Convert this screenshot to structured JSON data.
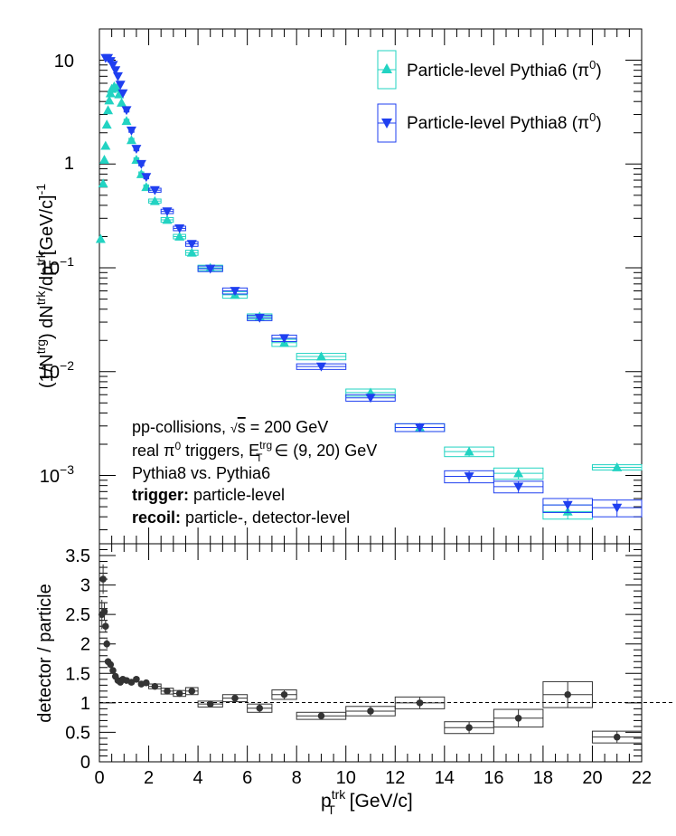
{
  "chart_data": [
    {
      "type": "scatter",
      "panel": "top",
      "log_y": true,
      "xlim": [
        0,
        22
      ],
      "ylim": [
        0.00022,
        20
      ],
      "ylabel": "(1/N^trg) dN^trk/dp_T^trk [GeV/c]^-1",
      "y_tick_labels": [
        "10^-3",
        "10^-2",
        "10^-1",
        "1",
        "10"
      ],
      "legend_position": "top-right",
      "annotations": [
        "pp-collisions, √s = 200 GeV",
        "real π⁰ triggers, E_T^trg ∈ (9, 20) GeV",
        "Pythia8 vs. Pythia6",
        "trigger: particle-level",
        "recoil: particle-, detector-level"
      ],
      "series": [
        {
          "name": "Particle-level Pythia6 (π⁰)",
          "color": "#22d3c2",
          "marker": "triangle-up",
          "points": [
            {
              "x": 0.05,
              "y": 0.19,
              "xw": 0.05,
              "e": 0.01
            },
            {
              "x": 0.15,
              "y": 0.65,
              "xw": 0.05,
              "e": 0.03
            },
            {
              "x": 0.2,
              "y": 1.1,
              "xw": 0.03,
              "e": 0.05
            },
            {
              "x": 0.25,
              "y": 1.5,
              "xw": 0.03,
              "e": 0.06
            },
            {
              "x": 0.3,
              "y": 2.4,
              "xw": 0.03,
              "e": 0.1
            },
            {
              "x": 0.35,
              "y": 3.3,
              "xw": 0.03,
              "e": 0.13
            },
            {
              "x": 0.4,
              "y": 4.1,
              "xw": 0.03,
              "e": 0.16
            },
            {
              "x": 0.45,
              "y": 4.8,
              "xw": 0.03,
              "e": 0.19
            },
            {
              "x": 0.5,
              "y": 5.3,
              "xw": 0.03,
              "e": 0.2
            },
            {
              "x": 0.6,
              "y": 5.6,
              "xw": 0.05,
              "e": 0.22
            },
            {
              "x": 0.7,
              "y": 5.4,
              "xw": 0.05,
              "e": 0.2
            },
            {
              "x": 0.8,
              "y": 4.7,
              "xw": 0.05,
              "e": 0.18
            },
            {
              "x": 0.9,
              "y": 3.9,
              "xw": 0.05,
              "e": 0.15
            },
            {
              "x": 1.1,
              "y": 2.6,
              "xw": 0.1,
              "e": 0.1
            },
            {
              "x": 1.3,
              "y": 1.7,
              "xw": 0.1,
              "e": 0.07
            },
            {
              "x": 1.5,
              "y": 1.1,
              "xw": 0.1,
              "e": 0.05
            },
            {
              "x": 1.7,
              "y": 0.8,
              "xw": 0.1,
              "e": 0.04
            },
            {
              "x": 1.9,
              "y": 0.6,
              "xw": 0.1,
              "e": 0.03
            },
            {
              "x": 2.25,
              "y": 0.44,
              "xw": 0.25,
              "e": 0.02
            },
            {
              "x": 2.75,
              "y": 0.29,
              "xw": 0.25,
              "e": 0.015
            },
            {
              "x": 3.25,
              "y": 0.2,
              "xw": 0.25,
              "e": 0.01
            },
            {
              "x": 3.75,
              "y": 0.14,
              "xw": 0.25,
              "e": 0.008
            },
            {
              "x": 4.5,
              "y": 0.1,
              "xw": 0.5,
              "e": 0.006
            },
            {
              "x": 5.5,
              "y": 0.055,
              "xw": 0.5,
              "e": 0.004
            },
            {
              "x": 6.5,
              "y": 0.034,
              "xw": 0.5,
              "e": 0.002
            },
            {
              "x": 7.5,
              "y": 0.019,
              "xw": 0.5,
              "e": 0.0015
            },
            {
              "x": 9.0,
              "y": 0.014,
              "xw": 1.0,
              "e": 0.001
            },
            {
              "x": 11.0,
              "y": 0.0063,
              "xw": 1.0,
              "e": 0.0005
            },
            {
              "x": 13.0,
              "y": 0.0029,
              "xw": 1.0,
              "e": 0.00025
            },
            {
              "x": 15.0,
              "y": 0.0017,
              "xw": 1.0,
              "e": 0.00018
            },
            {
              "x": 17.0,
              "y": 0.00105,
              "xw": 1.0,
              "e": 0.00013
            },
            {
              "x": 19.0,
              "y": 0.00045,
              "xw": 1.0,
              "e": 7e-05
            },
            {
              "x": 21.0,
              "y": 0.0012,
              "xw": 1.0,
              "e": 7e-05
            }
          ]
        },
        {
          "name": "Particle-level Pythia8 (π⁰)",
          "color": "#1f3ff0",
          "marker": "triangle-down",
          "points": [
            {
              "x": 0.25,
              "y": 10.5,
              "xw": 0.03,
              "e": 0.3
            },
            {
              "x": 0.35,
              "y": 10.5,
              "xw": 0.03,
              "e": 0.3
            },
            {
              "x": 0.45,
              "y": 9.8,
              "xw": 0.03,
              "e": 0.3
            },
            {
              "x": 0.55,
              "y": 9.0,
              "xw": 0.03,
              "e": 0.3
            },
            {
              "x": 0.65,
              "y": 8.0,
              "xw": 0.05,
              "e": 0.3
            },
            {
              "x": 0.75,
              "y": 7.0,
              "xw": 0.05,
              "e": 0.25
            },
            {
              "x": 0.85,
              "y": 5.8,
              "xw": 0.05,
              "e": 0.2
            },
            {
              "x": 0.95,
              "y": 4.8,
              "xw": 0.05,
              "e": 0.18
            },
            {
              "x": 1.1,
              "y": 3.3,
              "xw": 0.1,
              "e": 0.13
            },
            {
              "x": 1.3,
              "y": 2.1,
              "xw": 0.1,
              "e": 0.08
            },
            {
              "x": 1.5,
              "y": 1.4,
              "xw": 0.1,
              "e": 0.06
            },
            {
              "x": 1.7,
              "y": 1.0,
              "xw": 0.1,
              "e": 0.04
            },
            {
              "x": 1.9,
              "y": 0.75,
              "xw": 0.1,
              "e": 0.03
            },
            {
              "x": 2.25,
              "y": 0.56,
              "xw": 0.25,
              "e": 0.025
            },
            {
              "x": 2.75,
              "y": 0.35,
              "xw": 0.25,
              "e": 0.017
            },
            {
              "x": 3.25,
              "y": 0.24,
              "xw": 0.25,
              "e": 0.012
            },
            {
              "x": 3.75,
              "y": 0.17,
              "xw": 0.25,
              "e": 0.009
            },
            {
              "x": 4.5,
              "y": 0.098,
              "xw": 0.5,
              "e": 0.006
            },
            {
              "x": 5.5,
              "y": 0.06,
              "xw": 0.5,
              "e": 0.004
            },
            {
              "x": 6.5,
              "y": 0.033,
              "xw": 0.5,
              "e": 0.002
            },
            {
              "x": 7.5,
              "y": 0.021,
              "xw": 0.5,
              "e": 0.0015
            },
            {
              "x": 9.0,
              "y": 0.0112,
              "xw": 1.0,
              "e": 0.0007
            },
            {
              "x": 11.0,
              "y": 0.0056,
              "xw": 1.0,
              "e": 0.0004
            },
            {
              "x": 13.0,
              "y": 0.0029,
              "xw": 1.0,
              "e": 0.00025
            },
            {
              "x": 15.0,
              "y": 0.00098,
              "xw": 1.0,
              "e": 0.00013
            },
            {
              "x": 17.0,
              "y": 0.00078,
              "xw": 1.0,
              "e": 0.0001
            },
            {
              "x": 19.0,
              "y": 0.00052,
              "xw": 1.0,
              "e": 8e-05
            },
            {
              "x": 21.0,
              "y": 0.00049,
              "xw": 1.0,
              "e": 9e-05
            }
          ]
        }
      ]
    },
    {
      "type": "scatter",
      "panel": "bottom",
      "xlim": [
        0,
        22
      ],
      "ylim": [
        0,
        3.7
      ],
      "xlabel": "p_T^trk [GeV/c]",
      "ylabel": "detector / particle",
      "x_ticks": [
        0,
        2,
        4,
        6,
        8,
        10,
        12,
        14,
        16,
        18,
        20,
        22
      ],
      "y_ticks": [
        0,
        0.5,
        1,
        1.5,
        2,
        2.5,
        3,
        3.5
      ],
      "reference_line": 1,
      "series": [
        {
          "color": "#333333",
          "marker": "circle",
          "points": [
            {
              "x": 0.1,
              "y": 2.5,
              "xw": 0.05,
              "e": 0.25
            },
            {
              "x": 0.15,
              "y": 3.1,
              "xw": 0.03,
              "e": 0.25
            },
            {
              "x": 0.2,
              "y": 2.55,
              "xw": 0.03,
              "e": 0.15
            },
            {
              "x": 0.25,
              "y": 2.3,
              "xw": 0.03,
              "e": 0.1
            },
            {
              "x": 0.3,
              "y": 2.0,
              "xw": 0.03,
              "e": 0.08
            },
            {
              "x": 0.35,
              "y": 1.7,
              "xw": 0.03,
              "e": 0.06
            },
            {
              "x": 0.45,
              "y": 1.65,
              "xw": 0.03,
              "e": 0.05
            },
            {
              "x": 0.55,
              "y": 1.55,
              "xw": 0.03,
              "e": 0.04
            },
            {
              "x": 0.65,
              "y": 1.45,
              "xw": 0.05,
              "e": 0.04
            },
            {
              "x": 0.75,
              "y": 1.38,
              "xw": 0.05,
              "e": 0.03
            },
            {
              "x": 0.85,
              "y": 1.35,
              "xw": 0.05,
              "e": 0.03
            },
            {
              "x": 0.95,
              "y": 1.4,
              "xw": 0.05,
              "e": 0.03
            },
            {
              "x": 1.1,
              "y": 1.38,
              "xw": 0.1,
              "e": 0.03
            },
            {
              "x": 1.3,
              "y": 1.35,
              "xw": 0.1,
              "e": 0.03
            },
            {
              "x": 1.5,
              "y": 1.4,
              "xw": 0.1,
              "e": 0.03
            },
            {
              "x": 1.7,
              "y": 1.32,
              "xw": 0.1,
              "e": 0.03
            },
            {
              "x": 1.9,
              "y": 1.34,
              "xw": 0.1,
              "e": 0.03
            },
            {
              "x": 2.25,
              "y": 1.28,
              "xw": 0.25,
              "e": 0.04
            },
            {
              "x": 2.75,
              "y": 1.2,
              "xw": 0.25,
              "e": 0.05
            },
            {
              "x": 3.25,
              "y": 1.16,
              "xw": 0.25,
              "e": 0.05
            },
            {
              "x": 3.75,
              "y": 1.2,
              "xw": 0.25,
              "e": 0.06
            },
            {
              "x": 4.5,
              "y": 0.98,
              "xw": 0.5,
              "e": 0.05
            },
            {
              "x": 5.5,
              "y": 1.08,
              "xw": 0.5,
              "e": 0.06
            },
            {
              "x": 6.5,
              "y": 0.91,
              "xw": 0.5,
              "e": 0.07
            },
            {
              "x": 7.5,
              "y": 1.14,
              "xw": 0.5,
              "e": 0.08
            },
            {
              "x": 9.0,
              "y": 0.78,
              "xw": 1.0,
              "e": 0.06
            },
            {
              "x": 11.0,
              "y": 0.86,
              "xw": 1.0,
              "e": 0.08
            },
            {
              "x": 13.0,
              "y": 1.0,
              "xw": 1.0,
              "e": 0.1
            },
            {
              "x": 15.0,
              "y": 0.58,
              "xw": 1.0,
              "e": 0.1
            },
            {
              "x": 17.0,
              "y": 0.74,
              "xw": 1.0,
              "e": 0.15
            },
            {
              "x": 19.0,
              "y": 1.14,
              "xw": 1.0,
              "e": 0.22
            },
            {
              "x": 21.0,
              "y": 0.42,
              "xw": 1.0,
              "e": 0.1
            }
          ]
        }
      ]
    }
  ]
}
